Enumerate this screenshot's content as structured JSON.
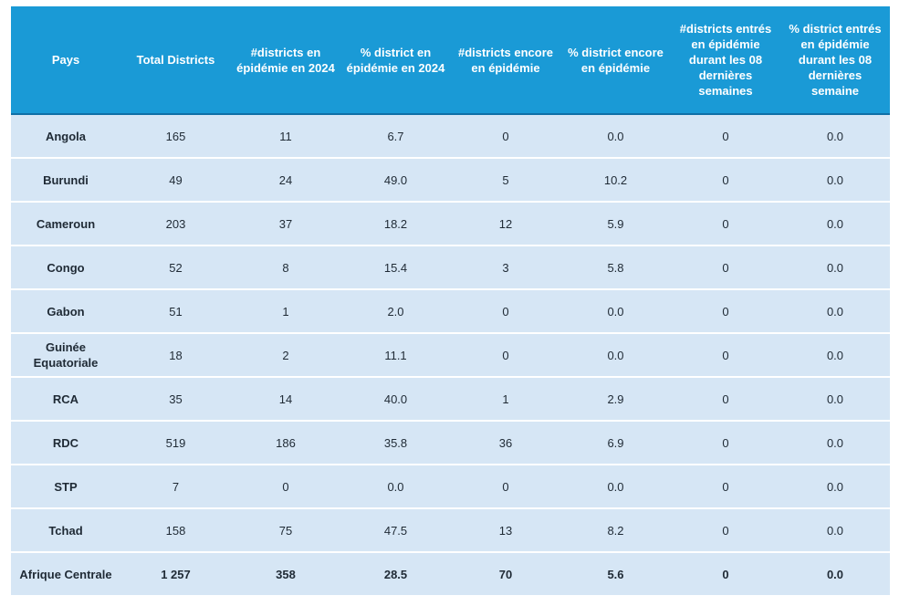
{
  "table": {
    "headers": [
      "Pays",
      "Total Districts",
      "#districts en épidémie en 2024",
      "% district en épidémie en 2024",
      "#districts encore en épidémie",
      "% district encore en épidémie",
      "#districts entrés en épidémie durant les 08 dernières semaines",
      "% district entrés en épidémie durant les 08 dernières semaine"
    ],
    "rows": [
      [
        "Angola",
        "165",
        "11",
        "6.7",
        "0",
        "0.0",
        "0",
        "0.0"
      ],
      [
        "Burundi",
        "49",
        "24",
        "49.0",
        "5",
        "10.2",
        "0",
        "0.0"
      ],
      [
        "Cameroun",
        "203",
        "37",
        "18.2",
        "12",
        "5.9",
        "0",
        "0.0"
      ],
      [
        "Congo",
        "52",
        "8",
        "15.4",
        "3",
        "5.8",
        "0",
        "0.0"
      ],
      [
        "Gabon",
        "51",
        "1",
        "2.0",
        "0",
        "0.0",
        "0",
        "0.0"
      ],
      [
        "Guinée Equatoriale",
        "18",
        "2",
        "11.1",
        "0",
        "0.0",
        "0",
        "0.0"
      ],
      [
        "RCA",
        "35",
        "14",
        "40.0",
        "1",
        "2.9",
        "0",
        "0.0"
      ],
      [
        "RDC",
        "519",
        "186",
        "35.8",
        "36",
        "6.9",
        "0",
        "0.0"
      ],
      [
        "STP",
        "7",
        "0",
        "0.0",
        "0",
        "0.0",
        "0",
        "0.0"
      ],
      [
        "Tchad",
        "158",
        "75",
        "47.5",
        "13",
        "8.2",
        "0",
        "0.0"
      ]
    ],
    "total": [
      "Afrique Centrale",
      "1 257",
      "358",
      "28.5",
      "70",
      "5.6",
      "0",
      "0.0"
    ]
  },
  "colors": {
    "header_bg": "#1a9ad6",
    "row_bg": "#d6e6f5",
    "header_text": "#ffffff"
  }
}
